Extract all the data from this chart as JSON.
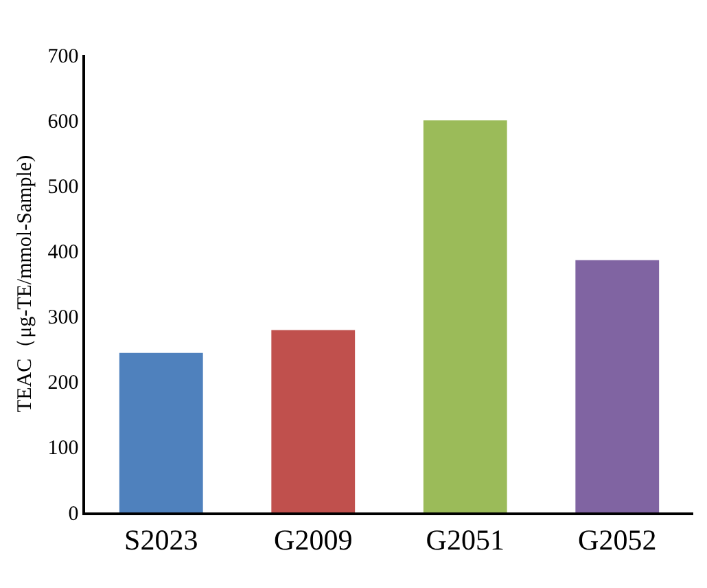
{
  "chart_data": {
    "type": "bar",
    "ylabel": "TEAC（μg-TE/mmol-Sample)",
    "categories": [
      "S2023",
      "G2009",
      "G2051",
      "G2052"
    ],
    "values": [
      244,
      279,
      600,
      386
    ],
    "colors": [
      "#4f81bd",
      "#c0504d",
      "#9bbb59",
      "#8064a2"
    ],
    "ylim": [
      0,
      700
    ],
    "yticks": [
      0,
      100,
      200,
      300,
      400,
      500,
      600,
      700
    ],
    "grid": false
  }
}
